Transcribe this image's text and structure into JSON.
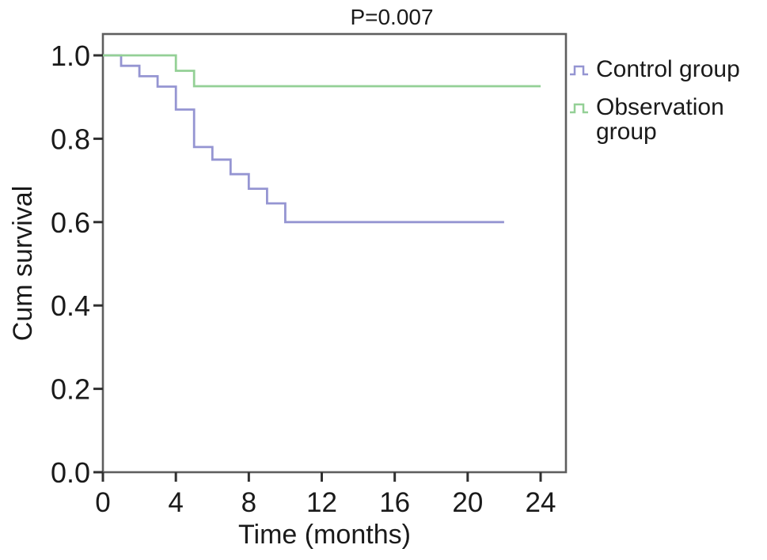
{
  "chart_data": {
    "type": "line",
    "variant": "kaplan-meier-step",
    "title": "P=0.007",
    "xlabel": "Time (months)",
    "ylabel": "Cum survival",
    "xlim": [
      0,
      24
    ],
    "ylim": [
      0.0,
      1.0
    ],
    "grid": false,
    "legend_position": "outside-right-top",
    "xticks": [
      {
        "value": 0,
        "label": "0"
      },
      {
        "value": 4,
        "label": "4"
      },
      {
        "value": 8,
        "label": "8"
      },
      {
        "value": 12,
        "label": "12"
      },
      {
        "value": 16,
        "label": "16"
      },
      {
        "value": 20,
        "label": "20"
      },
      {
        "value": 24,
        "label": "24"
      }
    ],
    "yticks": [
      {
        "value": 0.0,
        "label": "0.0"
      },
      {
        "value": 0.2,
        "label": "0.2"
      },
      {
        "value": 0.4,
        "label": "0.4"
      },
      {
        "value": 0.6,
        "label": "0.6"
      },
      {
        "value": 0.8,
        "label": "0.8"
      },
      {
        "value": 1.0,
        "label": "1.0"
      }
    ],
    "series": [
      {
        "name": "Control group",
        "color": "#9595d2",
        "points": [
          [
            0,
            1.0
          ],
          [
            1,
            0.975
          ],
          [
            2,
            0.95
          ],
          [
            3,
            0.925
          ],
          [
            4,
            0.87
          ],
          [
            5,
            0.78
          ],
          [
            6,
            0.75
          ],
          [
            7,
            0.715
          ],
          [
            8,
            0.68
          ],
          [
            9,
            0.645
          ],
          [
            10,
            0.6
          ],
          [
            22,
            0.6
          ]
        ]
      },
      {
        "name": "Observation group",
        "color": "#94d096",
        "points": [
          [
            0,
            1.0
          ],
          [
            4,
            0.963
          ],
          [
            5,
            0.926
          ],
          [
            24,
            0.926
          ]
        ]
      }
    ]
  }
}
